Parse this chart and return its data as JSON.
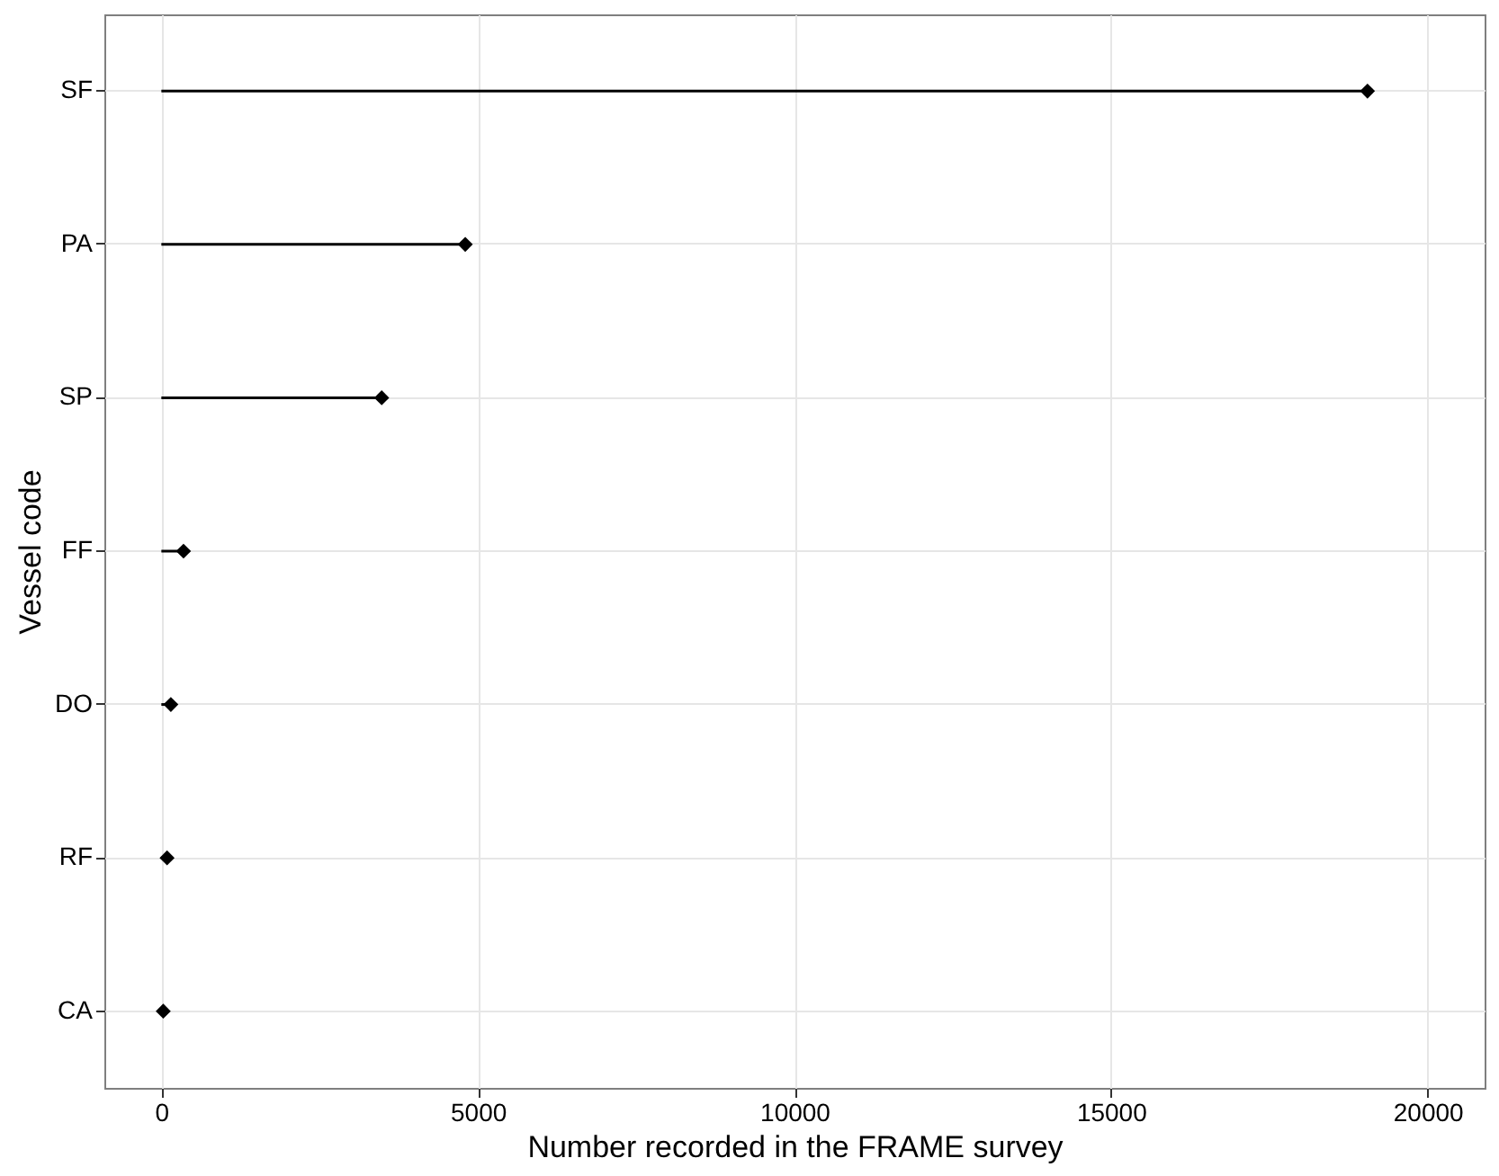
{
  "chart_data": {
    "type": "lollipop",
    "orientation": "horizontal",
    "xlabel": "Number recorded in the FRAME survey",
    "ylabel": "Vessel code",
    "categories": [
      "SF",
      "PA",
      "SP",
      "FF",
      "DO",
      "RF",
      "CA"
    ],
    "values": [
      19050,
      4800,
      3480,
      350,
      150,
      90,
      30
    ],
    "color": "#000000",
    "marker": "diamond",
    "xlim": [
      -900,
      20900
    ],
    "xticks": [
      0,
      5000,
      10000,
      15000,
      20000
    ],
    "grid": true
  }
}
